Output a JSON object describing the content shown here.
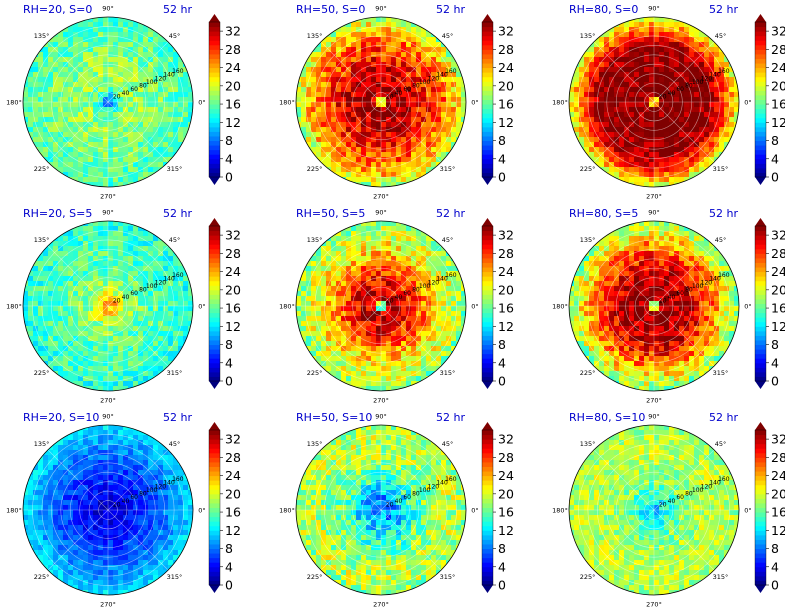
{
  "figure": {
    "colors": {
      "jet": [
        "#00007f",
        "#0000ff",
        "#007fff",
        "#00ffff",
        "#7fff7f",
        "#ffff00",
        "#ff7f00",
        "#ff0000",
        "#7f0000"
      ],
      "title_left": "#0000cc",
      "title_right": "#0000cc"
    }
  },
  "chart_data": [
    {
      "type": "heatmap",
      "subtype": "polar",
      "title_left": "RH=20, S=0",
      "title_right": "52 hr",
      "theta_ticks": [
        "90°",
        "45°",
        "0°",
        "315°",
        "270°",
        "225°",
        "180°",
        "135°"
      ],
      "r_ticks": [
        "20",
        "40",
        "60",
        "80",
        "100",
        "120",
        "140",
        "160"
      ],
      "rlim": [
        0,
        180
      ],
      "colorbar": {
        "ticks": [
          "0",
          "4",
          "8",
          "12",
          "16",
          "20",
          "24",
          "28",
          "32"
        ],
        "range": [
          0,
          34
        ],
        "extend": "both"
      },
      "value_profile": {
        "r": [
          0,
          10,
          30,
          60,
          100,
          140,
          180
        ],
        "values": [
          4,
          10,
          17,
          18,
          17,
          16,
          15
        ]
      },
      "noise_amplitude": 3
    },
    {
      "type": "heatmap",
      "subtype": "polar",
      "title_left": "RH=50, S=0",
      "title_right": "52 hr",
      "theta_ticks": [
        "90°",
        "45°",
        "0°",
        "315°",
        "270°",
        "225°",
        "180°",
        "135°"
      ],
      "r_ticks": [
        "20",
        "40",
        "60",
        "80",
        "100",
        "120",
        "140",
        "160"
      ],
      "rlim": [
        0,
        180
      ],
      "colorbar": {
        "ticks": [
          "0",
          "4",
          "8",
          "12",
          "16",
          "20",
          "24",
          "28",
          "32"
        ],
        "range": [
          0,
          34
        ],
        "extend": "both"
      },
      "value_profile": {
        "r": [
          0,
          6,
          15,
          40,
          80,
          120,
          150,
          180
        ],
        "values": [
          14,
          18,
          33,
          33,
          30,
          27,
          24,
          18
        ]
      },
      "noise_amplitude": 4
    },
    {
      "type": "heatmap",
      "subtype": "polar",
      "title_left": "RH=80, S=0",
      "title_right": "52 hr",
      "theta_ticks": [
        "90°",
        "45°",
        "0°",
        "315°",
        "270°",
        "225°",
        "180°",
        "135°"
      ],
      "r_ticks": [
        "20",
        "40",
        "60",
        "80",
        "100",
        "120",
        "140",
        "160"
      ],
      "rlim": [
        0,
        180
      ],
      "colorbar": {
        "ticks": [
          "0",
          "4",
          "8",
          "12",
          "16",
          "20",
          "24",
          "28",
          "32"
        ],
        "range": [
          0,
          34
        ],
        "extend": "both"
      },
      "value_profile": {
        "r": [
          0,
          5,
          12,
          60,
          120,
          145,
          165,
          180
        ],
        "values": [
          14,
          18,
          34,
          34,
          33,
          28,
          24,
          19
        ]
      },
      "noise_amplitude": 3
    },
    {
      "type": "heatmap",
      "subtype": "polar",
      "title_left": "RH=20, S=5",
      "title_right": "52 hr",
      "theta_ticks": [
        "90°",
        "45°",
        "0°",
        "315°",
        "270°",
        "225°",
        "180°",
        "135°"
      ],
      "r_ticks": [
        "20",
        "40",
        "60",
        "80",
        "100",
        "120",
        "140",
        "160"
      ],
      "rlim": [
        0,
        180
      ],
      "colorbar": {
        "ticks": [
          "0",
          "4",
          "8",
          "12",
          "16",
          "20",
          "24",
          "28",
          "32"
        ],
        "range": [
          0,
          34
        ],
        "extend": "both"
      },
      "value_profile": {
        "r": [
          0,
          8,
          20,
          40,
          80,
          130,
          180
        ],
        "values": [
          8,
          25,
          22,
          18,
          16,
          15,
          14
        ]
      },
      "noise_amplitude": 3
    },
    {
      "type": "heatmap",
      "subtype": "polar",
      "title_left": "RH=50, S=5",
      "title_right": "52 hr",
      "theta_ticks": [
        "90°",
        "45°",
        "0°",
        "315°",
        "270°",
        "225°",
        "180°",
        "135°"
      ],
      "r_ticks": [
        "20",
        "40",
        "60",
        "80",
        "100",
        "120",
        "140",
        "160"
      ],
      "rlim": [
        0,
        180
      ],
      "colorbar": {
        "ticks": [
          "0",
          "4",
          "8",
          "12",
          "16",
          "20",
          "24",
          "28",
          "32"
        ],
        "range": [
          0,
          34
        ],
        "extend": "both"
      },
      "value_profile": {
        "r": [
          0,
          8,
          15,
          40,
          80,
          120,
          160,
          180
        ],
        "values": [
          13,
          17,
          32,
          31,
          27,
          22,
          19,
          17
        ]
      },
      "noise_amplitude": 4
    },
    {
      "type": "heatmap",
      "subtype": "polar",
      "title_left": "RH=80, S=5",
      "title_right": "52 hr",
      "theta_ticks": [
        "90°",
        "45°",
        "0°",
        "315°",
        "270°",
        "225°",
        "180°",
        "135°"
      ],
      "r_ticks": [
        "20",
        "40",
        "60",
        "80",
        "100",
        "120",
        "140",
        "160"
      ],
      "rlim": [
        0,
        180
      ],
      "colorbar": {
        "ticks": [
          "0",
          "4",
          "8",
          "12",
          "16",
          "20",
          "24",
          "28",
          "32"
        ],
        "range": [
          0,
          34
        ],
        "extend": "both"
      },
      "value_profile": {
        "r": [
          0,
          6,
          15,
          50,
          90,
          130,
          160,
          180
        ],
        "values": [
          14,
          18,
          34,
          33,
          30,
          25,
          20,
          17
        ]
      },
      "noise_amplitude": 4
    },
    {
      "type": "heatmap",
      "subtype": "polar",
      "title_left": "RH=20, S=10",
      "title_right": "52 hr",
      "theta_ticks": [
        "90°",
        "45°",
        "0°",
        "315°",
        "270°",
        "225°",
        "180°",
        "135°"
      ],
      "r_ticks": [
        "20",
        "40",
        "60",
        "80",
        "100",
        "120",
        "140",
        "160"
      ],
      "rlim": [
        0,
        180
      ],
      "colorbar": {
        "ticks": [
          "0",
          "4",
          "8",
          "12",
          "16",
          "20",
          "24",
          "28",
          "32"
        ],
        "range": [
          0,
          34
        ],
        "extend": "both"
      },
      "value_profile": {
        "r": [
          0,
          40,
          100,
          150,
          180
        ],
        "values": [
          2,
          4,
          7,
          10,
          12
        ]
      },
      "noise_amplitude": 2
    },
    {
      "type": "heatmap",
      "subtype": "polar",
      "title_left": "RH=50, S=10",
      "title_right": "52 hr",
      "theta_ticks": [
        "90°",
        "45°",
        "0°",
        "315°",
        "270°",
        "225°",
        "180°",
        "135°"
      ],
      "r_ticks": [
        "20",
        "40",
        "60",
        "80",
        "100",
        "120",
        "140",
        "160"
      ],
      "rlim": [
        0,
        180
      ],
      "colorbar": {
        "ticks": [
          "0",
          "4",
          "8",
          "12",
          "16",
          "20",
          "24",
          "28",
          "32"
        ],
        "range": [
          0,
          34
        ],
        "extend": "both"
      },
      "value_profile": {
        "r": [
          0,
          30,
          70,
          110,
          150,
          180
        ],
        "values": [
          8,
          10,
          15,
          18,
          19,
          18
        ]
      },
      "noise_amplitude": 4
    },
    {
      "type": "heatmap",
      "subtype": "polar",
      "title_left": "RH=80, S=10",
      "title_right": "52 hr",
      "theta_ticks": [
        "90°",
        "45°",
        "0°",
        "315°",
        "270°",
        "225°",
        "180°",
        "135°"
      ],
      "r_ticks": [
        "20",
        "40",
        "60",
        "80",
        "100",
        "120",
        "140",
        "160"
      ],
      "rlim": [
        0,
        180
      ],
      "colorbar": {
        "ticks": [
          "0",
          "4",
          "8",
          "12",
          "16",
          "20",
          "24",
          "28",
          "32"
        ],
        "range": [
          0,
          34
        ],
        "extend": "both"
      },
      "value_profile": {
        "r": [
          0,
          20,
          60,
          110,
          150,
          180
        ],
        "values": [
          10,
          13,
          17,
          19,
          19,
          18
        ]
      },
      "noise_amplitude": 3
    }
  ]
}
